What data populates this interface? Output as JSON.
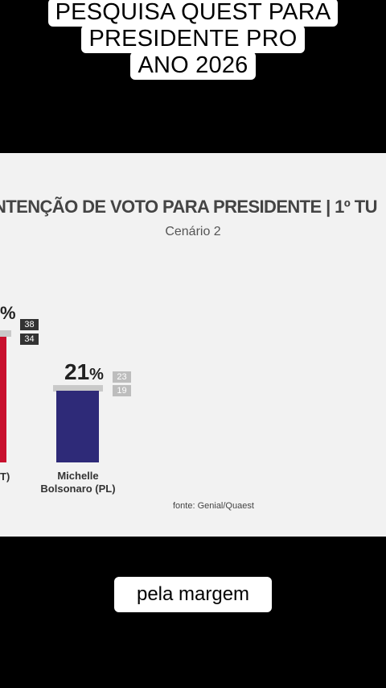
{
  "overlay": {
    "top_lines": [
      "PESQUISA QUEST PARA",
      "PRESIDENTE PRO",
      "ANO 2026"
    ],
    "bottom_text": "pela margem"
  },
  "chart": {
    "title": "NTENÇÃO DE VOTO PARA PRESIDENTE | 1º TU",
    "subtitle": "Cenário 2",
    "source": "fonte: Genial/Quaest",
    "bar1": {
      "value_text": "%",
      "color": "#c8102e",
      "box_top": "38",
      "box_bottom": "34",
      "name": "T)"
    },
    "bar2": {
      "value_text": "21",
      "percent_sign": "%",
      "color": "#2e2a78",
      "box_top": "23",
      "box_bottom": "19",
      "name_line1": "Michelle",
      "name_line2": "Bolsonaro (PL)"
    }
  },
  "chart_data": {
    "type": "bar",
    "title": "NTENÇÃO DE VOTO PARA PRESIDENTE | 1º TU",
    "subtitle": "Cenário 2",
    "categories": [
      "T)",
      "Michelle Bolsonaro (PL)"
    ],
    "values": [
      null,
      21
    ],
    "previous_values": [
      [
        38,
        34
      ],
      [
        23,
        19
      ]
    ],
    "colors": [
      "#c8102e",
      "#2e2a78"
    ]
  }
}
